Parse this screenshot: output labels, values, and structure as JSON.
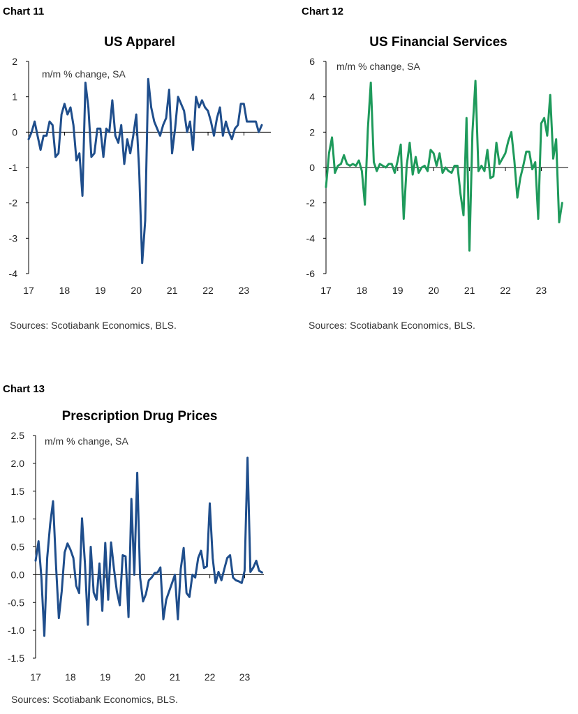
{
  "chart_data": [
    {
      "type": "line",
      "chart_label": "Chart 11",
      "title": "US Apparel",
      "ylabel": "m/m % change, SA",
      "source": "Sources: Scotiabank Economics, BLS.",
      "color": "#1f4e8c",
      "ylim": [
        -4,
        2
      ],
      "yticks": [
        "2",
        "1",
        "0",
        "-1",
        "-2",
        "-3",
        "-4"
      ],
      "xlim": [
        2017,
        2023.75
      ],
      "xticks": [
        "17",
        "18",
        "19",
        "20",
        "21",
        "22",
        "23"
      ],
      "x_start": 2017.0,
      "x_step": 0.0833,
      "values": [
        -0.2,
        0.0,
        0.3,
        -0.1,
        -0.5,
        -0.1,
        -0.1,
        0.3,
        0.2,
        -0.7,
        -0.6,
        0.5,
        0.8,
        0.5,
        0.7,
        0.2,
        -0.8,
        -0.6,
        -1.8,
        1.4,
        0.7,
        -0.7,
        -0.6,
        0.1,
        0.1,
        -0.7,
        0.1,
        0.0,
        0.9,
        -0.1,
        -0.3,
        0.2,
        -0.9,
        -0.2,
        -0.6,
        -0.1,
        0.5,
        -1.1,
        -3.7,
        -2.5,
        1.5,
        0.7,
        0.3,
        0.1,
        -0.1,
        0.2,
        0.4,
        1.2,
        -0.6,
        0.1,
        1.0,
        0.8,
        0.6,
        0.0,
        0.3,
        -0.5,
        1.0,
        0.7,
        0.9,
        0.7,
        0.6,
        0.3,
        -0.1,
        0.4,
        0.7,
        -0.1,
        0.3,
        0.0,
        -0.2,
        0.1,
        0.2,
        0.8,
        0.8,
        0.3,
        0.3,
        0.3,
        0.3,
        0.0,
        0.2
      ]
    },
    {
      "type": "line",
      "chart_label": "Chart 12",
      "title": "US Financial Services",
      "ylabel": "m/m % change, SA",
      "source": "Sources: Scotiabank Economics, BLS.",
      "color": "#1e9a5b",
      "ylim": [
        -6,
        6
      ],
      "yticks": [
        "6",
        "4",
        "2",
        "0",
        "-2",
        "-4",
        "-6"
      ],
      "xlim": [
        2017,
        2023.75
      ],
      "xticks": [
        "17",
        "18",
        "19",
        "20",
        "21",
        "22",
        "23"
      ],
      "x_start": 2017.0,
      "x_step": 0.0833,
      "values": [
        -1.1,
        0.8,
        1.7,
        -0.3,
        0.1,
        0.2,
        0.7,
        0.2,
        0.1,
        0.2,
        0.1,
        0.4,
        -0.2,
        -2.1,
        2.2,
        4.8,
        0.3,
        -0.2,
        0.2,
        0.1,
        0.0,
        0.2,
        0.2,
        -0.3,
        0.4,
        1.3,
        -2.9,
        0.1,
        1.4,
        -0.4,
        0.6,
        -0.3,
        0.0,
        0.1,
        -0.2,
        1.0,
        0.8,
        0.1,
        0.8,
        -0.3,
        0.0,
        -0.2,
        -0.3,
        0.1,
        0.1,
        -1.5,
        -2.7,
        2.8,
        -4.7,
        2.0,
        4.9,
        -0.2,
        0.1,
        -0.2,
        1.0,
        -0.6,
        -0.5,
        1.4,
        0.2,
        0.5,
        0.8,
        1.5,
        2.0,
        0.4,
        -1.7,
        -0.6,
        0.1,
        0.9,
        0.9,
        -0.1,
        0.3,
        -2.9,
        2.5,
        2.8,
        1.8,
        4.1,
        0.5,
        1.6,
        -3.1,
        -2.0
      ]
    },
    {
      "type": "line",
      "chart_label": "Chart 13",
      "title": "Prescription Drug Prices",
      "ylabel": "m/m % change, SA",
      "source": "Sources: Scotiabank Economics, BLS.",
      "color": "#1f4e8c",
      "ylim": [
        -1.5,
        2.5
      ],
      "yticks": [
        "2.5",
        "2.0",
        "1.5",
        "1.0",
        "0.5",
        "0.0",
        "-0.5",
        "-1.0",
        "-1.5"
      ],
      "xlim": [
        2017,
        2023.55
      ],
      "xticks": [
        "17",
        "18",
        "19",
        "20",
        "21",
        "22",
        "23"
      ],
      "x_start": 2017.0,
      "x_step": 0.0833,
      "values": [
        0.25,
        0.6,
        -0.05,
        -1.1,
        0.3,
        0.9,
        1.32,
        0.2,
        -0.78,
        -0.3,
        0.4,
        0.56,
        0.45,
        0.3,
        -0.2,
        -0.33,
        1.01,
        0.2,
        -0.9,
        0.5,
        -0.32,
        -0.45,
        0.2,
        -0.65,
        0.57,
        -0.45,
        0.58,
        0.1,
        -0.3,
        -0.55,
        0.35,
        0.33,
        -0.76,
        1.36,
        0.0,
        1.83,
        -0.05,
        -0.48,
        -0.35,
        -0.1,
        -0.05,
        0.03,
        0.04,
        0.13,
        -0.8,
        -0.45,
        -0.3,
        -0.15,
        0.0,
        -0.8,
        0.1,
        0.48,
        -0.33,
        -0.4,
        0.0,
        -0.05,
        0.3,
        0.43,
        0.12,
        0.15,
        1.28,
        0.3,
        -0.15,
        0.05,
        -0.1,
        0.1,
        0.3,
        0.35,
        -0.05,
        -0.1,
        -0.12,
        -0.15,
        0.07,
        2.1,
        0.05,
        0.13,
        0.25,
        0.07,
        0.04
      ]
    }
  ]
}
